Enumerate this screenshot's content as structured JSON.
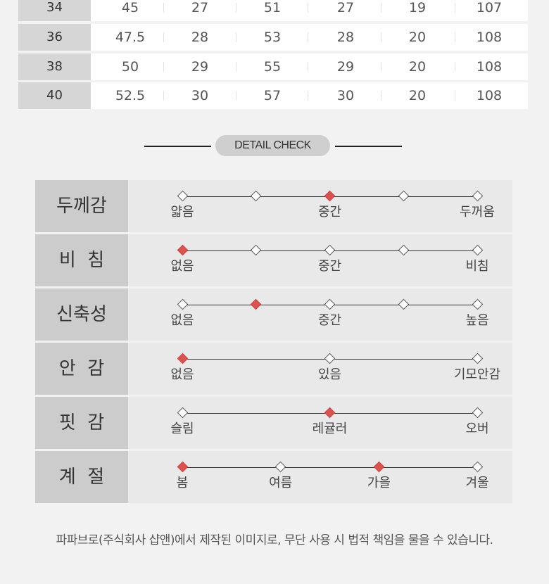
{
  "size_table": {
    "rows": [
      {
        "size": "34",
        "values": [
          "45",
          "27",
          "51",
          "27",
          "19",
          "107"
        ]
      },
      {
        "size": "36",
        "values": [
          "47.5",
          "28",
          "53",
          "28",
          "20",
          "108"
        ]
      },
      {
        "size": "38",
        "values": [
          "50",
          "29",
          "55",
          "29",
          "20",
          "108"
        ]
      },
      {
        "size": "40",
        "values": [
          "52.5",
          "30",
          "57",
          "30",
          "20",
          "108"
        ]
      }
    ]
  },
  "detail_check": {
    "title": "DETAIL CHECK",
    "accent_color": "#d9534f",
    "rows": [
      {
        "label": "두께감",
        "points": [
          "얇음",
          "",
          "중간",
          "",
          "두꺼움"
        ],
        "selected": 2
      },
      {
        "label": "비  침",
        "points": [
          "없음",
          "",
          "중간",
          "",
          "비침"
        ],
        "selected": 0
      },
      {
        "label": "신축성",
        "points": [
          "없음",
          "",
          "중간",
          "",
          "높음"
        ],
        "selected": 1
      },
      {
        "label": "안  감",
        "points": [
          "없음",
          "있음",
          "기모안감"
        ],
        "selected": 0
      },
      {
        "label": "핏  감",
        "points": [
          "슬림",
          "레귤러",
          "오버"
        ],
        "selected": 1
      },
      {
        "label": "계  절",
        "points": [
          "봄",
          "여름",
          "가을",
          "겨울"
        ],
        "selected": [
          0,
          2
        ]
      }
    ]
  },
  "footer": {
    "notice": "파파브로(주식회사 샵앤)에서 제작된 이미지로, 무단 사용 시 법적 책임을 물을 수 있습니다."
  }
}
